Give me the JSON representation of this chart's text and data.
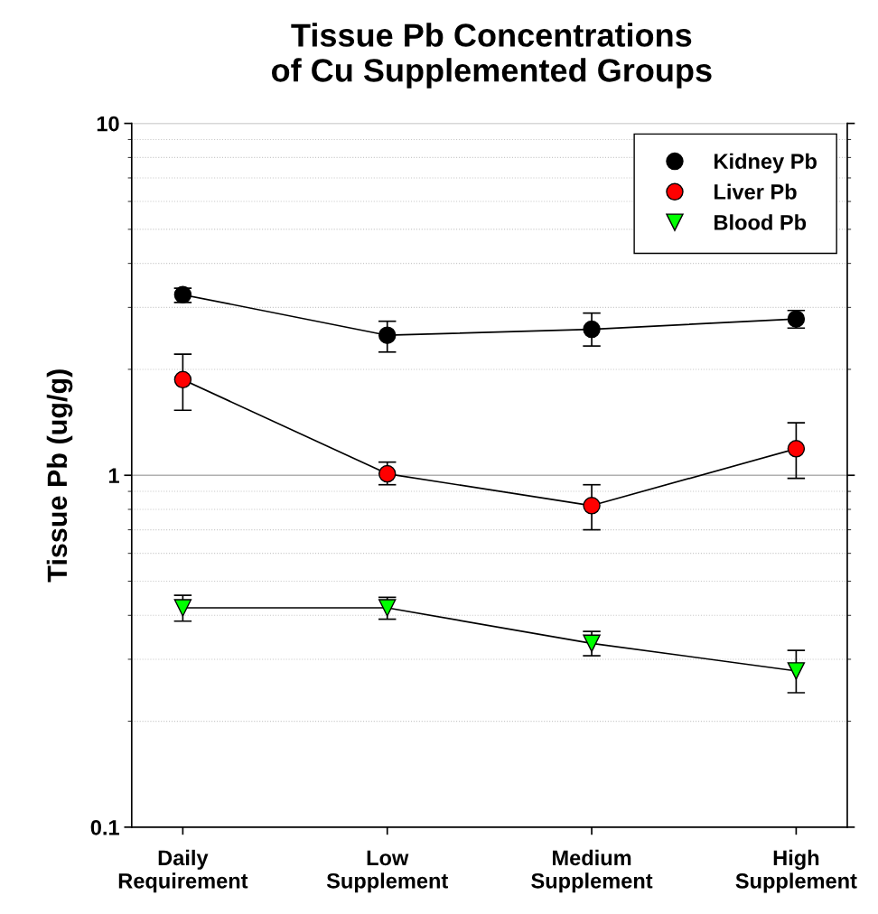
{
  "chart_data": {
    "type": "line",
    "title": "Tissue Pb Concentrations\nof Cu Supplemented Groups",
    "ylabel": "Tissue Pb (ug/g)",
    "categories": [
      "Daily\nRequirement",
      "Low\nSupplement",
      "Medium\nSupplement",
      "High\nSupplement"
    ],
    "log": "y",
    "ylim": [
      0.1,
      10
    ],
    "yticks": [
      0.1,
      1,
      10
    ],
    "grid": "y",
    "legend": "top right",
    "series": [
      {
        "name": "Kidney Pb",
        "color": "#000000",
        "marker": "circle",
        "values": [
          3.26,
          2.5,
          2.6,
          2.78
        ],
        "errors": [
          [
            3.1,
            3.4
          ],
          [
            2.24,
            2.74
          ],
          [
            2.33,
            2.89
          ],
          [
            2.62,
            2.94
          ]
        ]
      },
      {
        "name": "Liver Pb",
        "color": "#ff0000",
        "marker": "circle",
        "values": [
          1.87,
          1.01,
          0.82,
          1.19
        ],
        "errors": [
          [
            1.53,
            2.21
          ],
          [
            0.94,
            1.09
          ],
          [
            0.7,
            0.94
          ],
          [
            0.98,
            1.41
          ]
        ]
      },
      {
        "name": "Blood Pb",
        "color": "#00ff00",
        "marker": "triangle",
        "values": [
          0.42,
          0.42,
          0.333,
          0.278
        ],
        "errors": [
          [
            0.385,
            0.456
          ],
          [
            0.39,
            0.45
          ],
          [
            0.307,
            0.36
          ],
          [
            0.241,
            0.318
          ]
        ]
      }
    ]
  }
}
